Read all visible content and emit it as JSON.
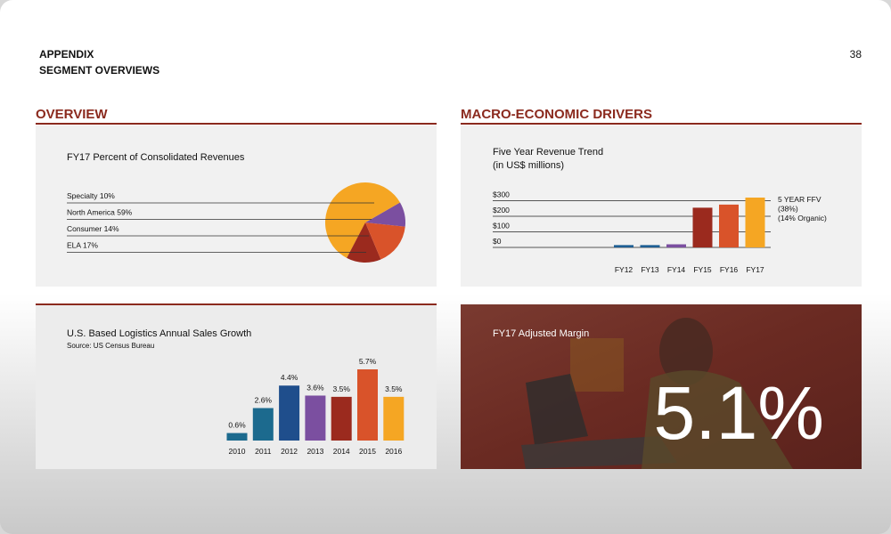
{
  "header": {
    "title": "APPENDIX",
    "subtitle": "SEGMENT OVERVIEWS",
    "page_number": "38"
  },
  "sections": [
    "OVERVIEW",
    "MACRO-ECONOMIC DRIVERS"
  ],
  "margin_panel": {
    "title": "FY17 Adjusted Margin",
    "value": "5.1%"
  },
  "chart_data": [
    {
      "type": "pie",
      "title": "FY17 Percent of Consolidated Revenues",
      "categories": [
        "Specialty 10%",
        "North America 59%",
        "Consumer 14%",
        "ELA 17%"
      ],
      "values": [
        10,
        59,
        14,
        17
      ],
      "colors": [
        "#7b4fa0",
        "#f5a623",
        "#9b2a1e",
        "#d9532a"
      ]
    },
    {
      "type": "bar",
      "title": "Five Year Revenue Trend",
      "subtitle": "(in US$ millions)",
      "categories": [
        "FY12",
        "FY13",
        "FY14",
        "FY15",
        "FY16",
        "FY17"
      ],
      "values": [
        15,
        15,
        20,
        255,
        275,
        320
      ],
      "colors": [
        "#1f5f94",
        "#1f5f94",
        "#7b4fa0",
        "#9b2a1e",
        "#d9532a",
        "#f5a623"
      ],
      "ylim": [
        0,
        320
      ],
      "yticks": [
        {
          "value": 0,
          "label": "$0"
        },
        {
          "value": 100,
          "label": "$100"
        },
        {
          "value": 200,
          "label": "$200"
        },
        {
          "value": 300,
          "label": "$300"
        }
      ],
      "grid": true,
      "annotations": [
        "5 YEAR FFV",
        "(38%)",
        "(14% Organic)"
      ]
    },
    {
      "type": "bar",
      "title": "U.S. Based Logistics Annual Sales Growth",
      "subtitle": "Source: US Census Bureau",
      "categories": [
        "2010",
        "2011",
        "2012",
        "2013",
        "2014",
        "2015",
        "2016"
      ],
      "values": [
        0.6,
        2.6,
        4.4,
        3.6,
        3.5,
        5.7,
        3.5
      ],
      "value_labels": [
        "0.6%",
        "2.6%",
        "4.4%",
        "3.6%",
        "3.5%",
        "5.7%",
        "3.5%"
      ],
      "colors": [
        "#1c6a8e",
        "#1c6a8e",
        "#1f4e8c",
        "#7b4fa0",
        "#9b2a1e",
        "#d9532a",
        "#f5a623"
      ]
    }
  ]
}
